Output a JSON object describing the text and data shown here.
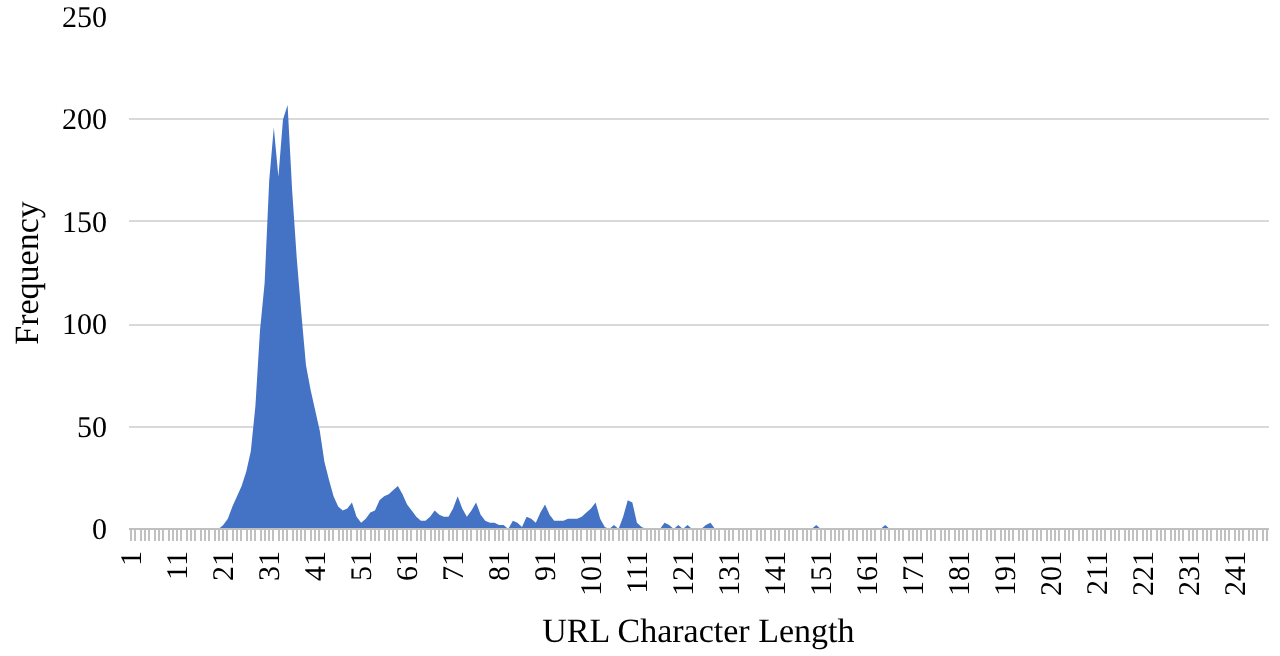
{
  "chart_data": {
    "type": "area",
    "xlabel": "URL Character Length",
    "ylabel": "Frequency",
    "categories": [
      "1",
      null,
      null,
      null,
      null,
      null,
      null,
      null,
      null,
      null,
      "11",
      null,
      null,
      null,
      null,
      null,
      null,
      null,
      null,
      null,
      "21",
      null,
      null,
      null,
      null,
      null,
      null,
      null,
      null,
      null,
      "31",
      null,
      null,
      null,
      null,
      null,
      null,
      null,
      null,
      null,
      "41",
      null,
      null,
      null,
      null,
      null,
      null,
      null,
      null,
      null,
      "51",
      null,
      null,
      null,
      null,
      null,
      null,
      null,
      null,
      null,
      "61",
      null,
      null,
      null,
      null,
      null,
      null,
      null,
      null,
      null,
      "71",
      null,
      null,
      null,
      null,
      null,
      null,
      null,
      null,
      null,
      "81",
      null,
      null,
      null,
      null,
      null,
      null,
      null,
      null,
      null,
      "91",
      null,
      null,
      null,
      null,
      null,
      null,
      null,
      null,
      null,
      "101",
      null,
      null,
      null,
      null,
      null,
      null,
      null,
      null,
      null,
      "111",
      null,
      null,
      null,
      null,
      null,
      null,
      null,
      null,
      null,
      "121",
      null,
      null,
      null,
      null,
      null,
      null,
      null,
      null,
      null,
      "131",
      null,
      null,
      null,
      null,
      null,
      null,
      null,
      null,
      null,
      "141",
      null,
      null,
      null,
      null,
      null,
      null,
      null,
      null,
      null,
      "151",
      null,
      null,
      null,
      null,
      null,
      null,
      null,
      null,
      null,
      "161",
      null,
      null,
      null,
      null,
      null,
      null,
      null,
      null,
      null,
      "171",
      null,
      null,
      null,
      null,
      null,
      null,
      null,
      null,
      null,
      "181",
      null,
      null,
      null,
      null,
      null,
      null,
      null,
      null,
      null,
      "191",
      null,
      null,
      null,
      null,
      null,
      null,
      null,
      null,
      null,
      "201",
      null,
      null,
      null,
      null,
      null,
      null,
      null,
      null,
      null,
      "211",
      null,
      null,
      null,
      null,
      null,
      null,
      null,
      null,
      null,
      "221",
      null,
      null,
      null,
      null,
      null,
      null,
      null,
      null,
      null,
      "231",
      null,
      null,
      null,
      null,
      null,
      null,
      null,
      null,
      null,
      "241",
      null,
      null,
      null,
      null,
      null,
      null,
      null
    ],
    "values": [
      0,
      0,
      0,
      0,
      0,
      0,
      0,
      0,
      0,
      0,
      0,
      0,
      0,
      0,
      0,
      0,
      0,
      0,
      0,
      0,
      2,
      5,
      11,
      16,
      21,
      28,
      38,
      60,
      97,
      120,
      170,
      196,
      172,
      200,
      207,
      165,
      132,
      105,
      80,
      68,
      58,
      48,
      33,
      24,
      16,
      11,
      9,
      10,
      13,
      6,
      3,
      5,
      8,
      9,
      14,
      16,
      17,
      19,
      21,
      17,
      12,
      9,
      6,
      4,
      4,
      6,
      9,
      7,
      6,
      6,
      10,
      16,
      10,
      6,
      9,
      13,
      7,
      4,
      3,
      3,
      2,
      2,
      0,
      4,
      3,
      1,
      6,
      5,
      3,
      8,
      12,
      7,
      4,
      4,
      4,
      5,
      5,
      5,
      6,
      8,
      10,
      13,
      5,
      1,
      0,
      2,
      0,
      6,
      14,
      13,
      3,
      1,
      0,
      0,
      0,
      0,
      3,
      2,
      0,
      2,
      0,
      2,
      0,
      0,
      0,
      2,
      3,
      0,
      0,
      0,
      0,
      0,
      0,
      0,
      0,
      0,
      0,
      0,
      0,
      0,
      0,
      0,
      0,
      0,
      0,
      0,
      0,
      0,
      0,
      2,
      0,
      0,
      0,
      0,
      0,
      0,
      0,
      0,
      0,
      0,
      0,
      0,
      0,
      0,
      2,
      0,
      0,
      0,
      0,
      0,
      0,
      0,
      0,
      0,
      0,
      0,
      0,
      0,
      0,
      0,
      0,
      0,
      0,
      0,
      0,
      0,
      0,
      0,
      0,
      0,
      0,
      0,
      0,
      0,
      0,
      0,
      0,
      0,
      0,
      0,
      0,
      0,
      0,
      0,
      0,
      0,
      0,
      0,
      0,
      0,
      0,
      0,
      0,
      0,
      0,
      0,
      0,
      0,
      0,
      0,
      0,
      0,
      0,
      0,
      0,
      0,
      0,
      0,
      0,
      0,
      0,
      0,
      0,
      0,
      0,
      0,
      0,
      0,
      0,
      0,
      0,
      0,
      0,
      0,
      0,
      0,
      0,
      0
    ],
    "color": "#4472c4",
    "ylim": [
      0,
      250
    ],
    "yticks": [
      0,
      50,
      100,
      150,
      200,
      250
    ],
    "grid": "y"
  }
}
